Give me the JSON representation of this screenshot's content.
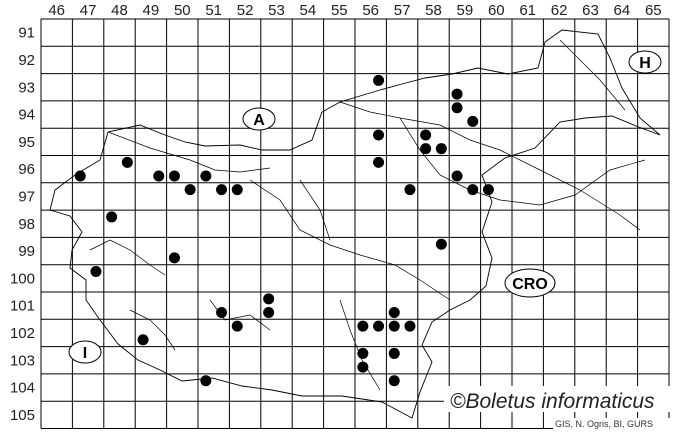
{
  "map": {
    "grid_columns": [
      "46",
      "47",
      "48",
      "49",
      "50",
      "51",
      "52",
      "53",
      "54",
      "55",
      "56",
      "57",
      "58",
      "59",
      "60",
      "61",
      "62",
      "63",
      "64",
      "65"
    ],
    "grid_rows": [
      "91",
      "92",
      "93",
      "94",
      "95",
      "96",
      "97",
      "98",
      "99",
      "100",
      "101",
      "102",
      "103",
      "104",
      "105"
    ],
    "country_labels": {
      "austria": "A",
      "hungary": "H",
      "italy": "I",
      "croatia": "CRO"
    },
    "copyright": "©Boletus informaticus",
    "credits": "GIS, N. Ogris, BI, GURS",
    "dot_color": "#000000",
    "records": [
      [
        48.25,
        95.75
      ],
      [
        46.75,
        96.25
      ],
      [
        49.25,
        96.25
      ],
      [
        49.75,
        96.25
      ],
      [
        50.75,
        96.25
      ],
      [
        50.25,
        96.75
      ],
      [
        51.25,
        96.75
      ],
      [
        51.75,
        96.75
      ],
      [
        47.75,
        97.75
      ],
      [
        56.25,
        92.75
      ],
      [
        58.75,
        93.25
      ],
      [
        58.75,
        93.75
      ],
      [
        59.25,
        94.25
      ],
      [
        56.25,
        94.75
      ],
      [
        57.75,
        94.75
      ],
      [
        57.75,
        95.25
      ],
      [
        58.25,
        95.25
      ],
      [
        56.25,
        95.75
      ],
      [
        58.75,
        96.25
      ],
      [
        57.25,
        96.75
      ],
      [
        59.25,
        96.75
      ],
      [
        59.75,
        96.75
      ],
      [
        49.75,
        99.25
      ],
      [
        47.25,
        99.75
      ],
      [
        52.75,
        100.75
      ],
      [
        52.75,
        101.25
      ],
      [
        51.25,
        101.25
      ],
      [
        51.75,
        101.75
      ],
      [
        48.75,
        102.25
      ],
      [
        50.75,
        103.75
      ],
      [
        58.25,
        98.75
      ],
      [
        56.75,
        101.25
      ],
      [
        55.75,
        101.75
      ],
      [
        56.25,
        101.75
      ],
      [
        56.75,
        101.75
      ],
      [
        57.25,
        101.75
      ],
      [
        55.75,
        102.75
      ],
      [
        55.75,
        103.25
      ],
      [
        56.75,
        102.75
      ],
      [
        56.75,
        103.75
      ]
    ]
  }
}
